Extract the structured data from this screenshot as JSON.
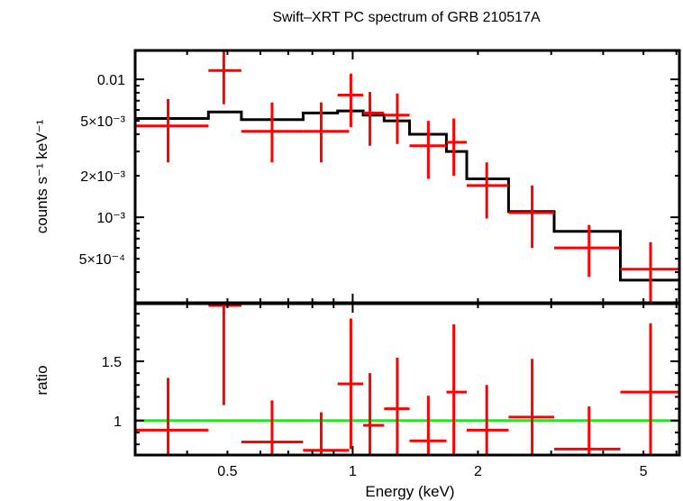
{
  "chart_data": {
    "type": "scatter",
    "title": "Swift–XRT PC spectrum of GRB 210517A",
    "xlabel": "Energy (keV)",
    "xscale": "log",
    "xlim": [
      0.3,
      6.1
    ],
    "x_ticks": [
      {
        "value": 0.5,
        "label": "0.5"
      },
      {
        "value": 1,
        "label": "1"
      },
      {
        "value": 2,
        "label": "2"
      },
      {
        "value": 5,
        "label": "5"
      }
    ],
    "colors": {
      "data": "#ff0000",
      "model": "#000000",
      "unity": "#00ff00",
      "axes": "#000000"
    },
    "panels": [
      {
        "name": "spectrum",
        "ylabel": "counts s⁻¹ keV⁻¹",
        "yscale": "log",
        "ylim": [
          0.00024,
          0.0162
        ],
        "y_ticks": [
          {
            "value": 0.01,
            "label": "0.01"
          },
          {
            "value": 0.005,
            "label": "5×10⁻³"
          },
          {
            "value": 0.002,
            "label": "2×10⁻³"
          },
          {
            "value": 0.001,
            "label": "10⁻³"
          },
          {
            "value": 0.0005,
            "label": "5×10⁻⁴"
          }
        ],
        "data_points": [
          {
            "x": 0.36,
            "xlo": 0.3,
            "xhi": 0.45,
            "y": 0.0046,
            "ylo": 0.0025,
            "yhi": 0.0072
          },
          {
            "x": 0.49,
            "xlo": 0.45,
            "xhi": 0.54,
            "y": 0.0116,
            "ylo": 0.0066,
            "yhi": 0.0165
          },
          {
            "x": 0.64,
            "xlo": 0.54,
            "xhi": 0.76,
            "y": 0.0042,
            "ylo": 0.0025,
            "yhi": 0.0068
          },
          {
            "x": 0.84,
            "xlo": 0.76,
            "xhi": 0.98,
            "y": 0.0042,
            "ylo": 0.0025,
            "yhi": 0.0068
          },
          {
            "x": 0.99,
            "xlo": 0.92,
            "xhi": 1.06,
            "y": 0.0077,
            "ylo": 0.0045,
            "yhi": 0.011
          },
          {
            "x": 1.1,
            "xlo": 1.06,
            "xhi": 1.19,
            "y": 0.0057,
            "ylo": 0.0033,
            "yhi": 0.0081
          },
          {
            "x": 1.28,
            "xlo": 1.19,
            "xhi": 1.37,
            "y": 0.0055,
            "ylo": 0.0034,
            "yhi": 0.0079
          },
          {
            "x": 1.52,
            "xlo": 1.37,
            "xhi": 1.68,
            "y": 0.0033,
            "ylo": 0.0019,
            "yhi": 0.005
          },
          {
            "x": 1.75,
            "xlo": 1.68,
            "xhi": 1.88,
            "y": 0.0035,
            "ylo": 0.002,
            "yhi": 0.0052
          },
          {
            "x": 2.1,
            "xlo": 1.88,
            "xhi": 2.37,
            "y": 0.0017,
            "ylo": 0.00098,
            "yhi": 0.0025
          },
          {
            "x": 2.7,
            "xlo": 2.37,
            "xhi": 3.05,
            "y": 0.00108,
            "ylo": 0.0006,
            "yhi": 0.0017
          },
          {
            "x": 3.7,
            "xlo": 3.05,
            "xhi": 4.4,
            "y": 0.0006,
            "ylo": 0.00037,
            "yhi": 0.00088
          },
          {
            "x": 5.2,
            "xlo": 4.4,
            "xhi": 6.1,
            "y": 0.00042,
            "ylo": 0.00024,
            "yhi": 0.00066
          }
        ],
        "model_steps": [
          {
            "xlo": 0.3,
            "xhi": 0.45,
            "y": 0.0052
          },
          {
            "xlo": 0.45,
            "xhi": 0.54,
            "y": 0.0058
          },
          {
            "xlo": 0.54,
            "xhi": 0.76,
            "y": 0.0051
          },
          {
            "xlo": 0.76,
            "xhi": 0.92,
            "y": 0.0057
          },
          {
            "xlo": 0.92,
            "xhi": 1.06,
            "y": 0.0059
          },
          {
            "xlo": 1.06,
            "xhi": 1.19,
            "y": 0.0055
          },
          {
            "xlo": 1.19,
            "xhi": 1.37,
            "y": 0.005
          },
          {
            "xlo": 1.37,
            "xhi": 1.68,
            "y": 0.004
          },
          {
            "xlo": 1.68,
            "xhi": 1.88,
            "y": 0.003
          },
          {
            "xlo": 1.88,
            "xhi": 2.37,
            "y": 0.0019
          },
          {
            "xlo": 2.37,
            "xhi": 3.05,
            "y": 0.0011
          },
          {
            "xlo": 3.05,
            "xhi": 4.4,
            "y": 0.00079
          },
          {
            "xlo": 4.4,
            "xhi": 6.1,
            "y": 0.00035
          }
        ]
      },
      {
        "name": "ratio",
        "ylabel": "ratio",
        "yscale": "linear",
        "ylim": [
          0.71,
          1.985
        ],
        "y_ticks": [
          {
            "value": 1.5,
            "label": "1.5"
          },
          {
            "value": 1,
            "label": "1"
          }
        ],
        "unity_line": 1,
        "data_points": [
          {
            "x": 0.36,
            "xlo": 0.3,
            "xhi": 0.45,
            "y": 0.92,
            "ylo": 0.71,
            "yhi": 1.36
          },
          {
            "x": 0.49,
            "xlo": 0.45,
            "xhi": 0.54,
            "y": 1.97,
            "ylo": 1.13,
            "yhi": 1.985
          },
          {
            "x": 0.64,
            "xlo": 0.54,
            "xhi": 0.76,
            "y": 0.82,
            "ylo": 0.71,
            "yhi": 1.17
          },
          {
            "x": 0.84,
            "xlo": 0.76,
            "xhi": 0.98,
            "y": 0.75,
            "ylo": 0.71,
            "yhi": 1.07
          },
          {
            "x": 0.99,
            "xlo": 0.92,
            "xhi": 1.06,
            "y": 1.31,
            "ylo": 0.76,
            "yhi": 1.86
          },
          {
            "x": 1.1,
            "xlo": 1.06,
            "xhi": 1.19,
            "y": 0.96,
            "ylo": 0.71,
            "yhi": 1.4
          },
          {
            "x": 1.28,
            "xlo": 1.19,
            "xhi": 1.37,
            "y": 1.1,
            "ylo": 0.71,
            "yhi": 1.53
          },
          {
            "x": 1.52,
            "xlo": 1.37,
            "xhi": 1.68,
            "y": 0.83,
            "ylo": 0.71,
            "yhi": 1.21
          },
          {
            "x": 1.75,
            "xlo": 1.68,
            "xhi": 1.88,
            "y": 1.24,
            "ylo": 0.71,
            "yhi": 1.81
          },
          {
            "x": 2.1,
            "xlo": 1.88,
            "xhi": 2.37,
            "y": 0.92,
            "ylo": 0.71,
            "yhi": 1.3
          },
          {
            "x": 2.7,
            "xlo": 2.37,
            "xhi": 3.05,
            "y": 1.03,
            "ylo": 0.71,
            "yhi": 1.52
          },
          {
            "x": 3.7,
            "xlo": 3.05,
            "xhi": 4.4,
            "y": 0.76,
            "ylo": 0.71,
            "yhi": 1.12
          },
          {
            "x": 5.2,
            "xlo": 4.4,
            "xhi": 6.1,
            "y": 1.24,
            "ylo": 0.71,
            "yhi": 1.82
          }
        ]
      }
    ]
  }
}
